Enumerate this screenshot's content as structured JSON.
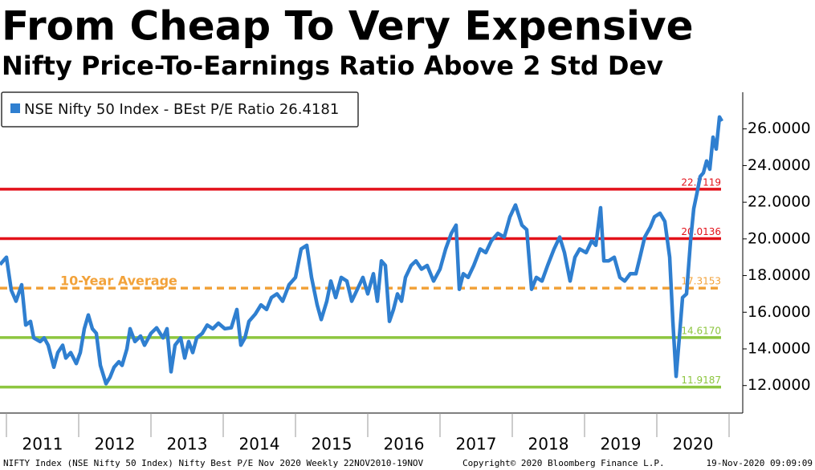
{
  "chart_data": {
    "type": "line",
    "title": "From Cheap To Very Expensive",
    "subtitle": "Nifty Price-To-Earnings Ratio Above 2 Std Dev",
    "series": [
      {
        "name": "NSE Nifty 50 Index - BEst P/E Ratio 26.4181",
        "color": "#2f7fd0",
        "x": [
          2010.911,
          2011.0,
          2011.067,
          2011.133,
          2011.211,
          2011.267,
          2011.333,
          2011.378,
          2011.467,
          2011.522,
          2011.578,
          2011.656,
          2011.711,
          2011.778,
          2011.822,
          2011.889,
          2011.967,
          2012.022,
          2012.078,
          2012.133,
          2012.189,
          2012.244,
          2012.3,
          2012.378,
          2012.433,
          2012.489,
          2012.556,
          2012.6,
          2012.667,
          2012.711,
          2012.778,
          2012.856,
          2012.911,
          2013.0,
          2013.078,
          2013.167,
          2013.222,
          2013.278,
          2013.333,
          2013.411,
          2013.467,
          2013.522,
          2013.578,
          2013.633,
          2013.711,
          2013.778,
          2013.856,
          2013.933,
          2014.022,
          2014.111,
          2014.189,
          2014.244,
          2014.3,
          2014.356,
          2014.444,
          2014.522,
          2014.6,
          2014.667,
          2014.744,
          2014.822,
          2014.911,
          2015.0,
          2015.078,
          2015.156,
          2015.222,
          2015.3,
          2015.356,
          2015.433,
          2015.489,
          2015.556,
          2015.633,
          2015.711,
          2015.778,
          2015.856,
          2015.933,
          2016.0,
          2016.078,
          2016.133,
          2016.189,
          2016.244,
          2016.3,
          2016.356,
          2016.411,
          2016.467,
          2016.522,
          2016.6,
          2016.667,
          2016.744,
          2016.822,
          2016.911,
          2017.0,
          2017.078,
          2017.156,
          2017.222,
          2017.267,
          2017.322,
          2017.389,
          2017.467,
          2017.556,
          2017.633,
          2017.711,
          2017.8,
          2017.889,
          2017.967,
          2018.044,
          2018.133,
          2018.2,
          2018.267,
          2018.333,
          2018.411,
          2018.489,
          2018.578,
          2018.656,
          2018.722,
          2018.8,
          2018.867,
          2018.933,
          2019.022,
          2019.1,
          2019.156,
          2019.222,
          2019.267,
          2019.333,
          2019.411,
          2019.489,
          2019.556,
          2019.633,
          2019.711,
          2019.767,
          2019.833,
          2019.911,
          2019.967,
          2020.044,
          2020.111,
          2020.178,
          2020.222,
          2020.267,
          2020.311,
          2020.356,
          2020.411,
          2020.467,
          2020.511,
          2020.556,
          2020.6,
          2020.644,
          2020.689,
          2020.733,
          2020.778,
          2020.822,
          2020.867,
          2020.9
        ],
        "values": [
          18.6,
          19.0,
          17.2,
          16.6,
          17.5,
          15.3,
          15.5,
          14.6,
          14.4,
          14.6,
          14.2,
          13.0,
          13.8,
          14.2,
          13.5,
          13.8,
          13.2,
          13.8,
          15.1,
          15.85,
          15.1,
          14.85,
          13.1,
          12.1,
          12.45,
          13.0,
          13.3,
          13.1,
          14.0,
          15.1,
          14.4,
          14.7,
          14.2,
          14.85,
          15.15,
          14.6,
          15.1,
          12.75,
          14.2,
          14.6,
          13.5,
          14.4,
          13.8,
          14.6,
          14.85,
          15.3,
          15.1,
          15.4,
          15.1,
          15.15,
          16.15,
          14.2,
          14.6,
          15.5,
          15.9,
          16.4,
          16.15,
          16.8,
          17.0,
          16.6,
          17.5,
          17.9,
          19.45,
          19.65,
          17.9,
          16.4,
          15.6,
          16.6,
          17.7,
          16.8,
          17.9,
          17.7,
          16.6,
          17.25,
          17.9,
          17.0,
          18.1,
          16.6,
          18.8,
          18.55,
          15.5,
          16.15,
          17.0,
          16.6,
          17.9,
          18.55,
          18.8,
          18.35,
          18.55,
          17.7,
          18.35,
          19.45,
          20.3,
          20.75,
          17.25,
          18.1,
          17.9,
          18.55,
          19.45,
          19.25,
          19.9,
          20.3,
          20.1,
          21.2,
          21.85,
          20.75,
          20.5,
          17.25,
          17.9,
          17.7,
          18.55,
          19.45,
          20.1,
          19.25,
          17.7,
          19.0,
          19.45,
          19.25,
          19.9,
          19.65,
          21.7,
          18.8,
          18.8,
          19.0,
          17.9,
          17.7,
          18.1,
          18.1,
          19.0,
          20.1,
          20.65,
          21.2,
          21.4,
          20.95,
          19.0,
          15.5,
          12.5,
          14.6,
          16.8,
          17.0,
          19.9,
          21.65,
          22.5,
          23.4,
          23.6,
          24.25,
          23.8,
          25.55,
          24.9,
          26.65,
          26.4181
        ]
      }
    ],
    "reference_lines": [
      {
        "value": 22.7119,
        "color": "#e3121b",
        "style": "solid"
      },
      {
        "value": 20.0136,
        "color": "#e3121b",
        "style": "solid"
      },
      {
        "value": 17.3153,
        "color": "#f2a23a",
        "style": "dashed",
        "name": "10-Year Average"
      },
      {
        "value": 14.617,
        "value_label": "14.6170",
        "color": "#8dc63f",
        "style": "solid"
      },
      {
        "value": 11.9187,
        "color": "#8dc63f",
        "style": "solid"
      }
    ],
    "xlim": [
      2010.911,
      2021.0
    ],
    "xticks": [
      2011,
      2012,
      2013,
      2014,
      2015,
      2016,
      2017,
      2018,
      2019,
      2020,
      2021
    ],
    "year_labels": [
      "2011",
      "2012",
      "2013",
      "2014",
      "2015",
      "2016",
      "2017",
      "2018",
      "2019",
      "2020"
    ],
    "ylim": [
      10.5,
      28
    ],
    "yticks": [
      {
        "value": 12,
        "label": "12.0000"
      },
      {
        "value": 14,
        "label": "14.0000"
      },
      {
        "value": 16,
        "label": "16.0000"
      },
      {
        "value": 18,
        "label": "18.0000"
      },
      {
        "value": 20,
        "label": "20.0000"
      },
      {
        "value": 22,
        "label": "22.0000"
      },
      {
        "value": 24,
        "label": "24.0000"
      },
      {
        "value": 26,
        "label": "26.0000"
      }
    ],
    "footer": [
      "NIFTY Index (NSE Nifty 50 Index) Nifty Best P/E Nov 2020  Weekly 22NOV2010-19NOV",
      "Copyright© 2020 Bloomberg Finance L.P.",
      "19-Nov-2020 09:09:09"
    ]
  }
}
